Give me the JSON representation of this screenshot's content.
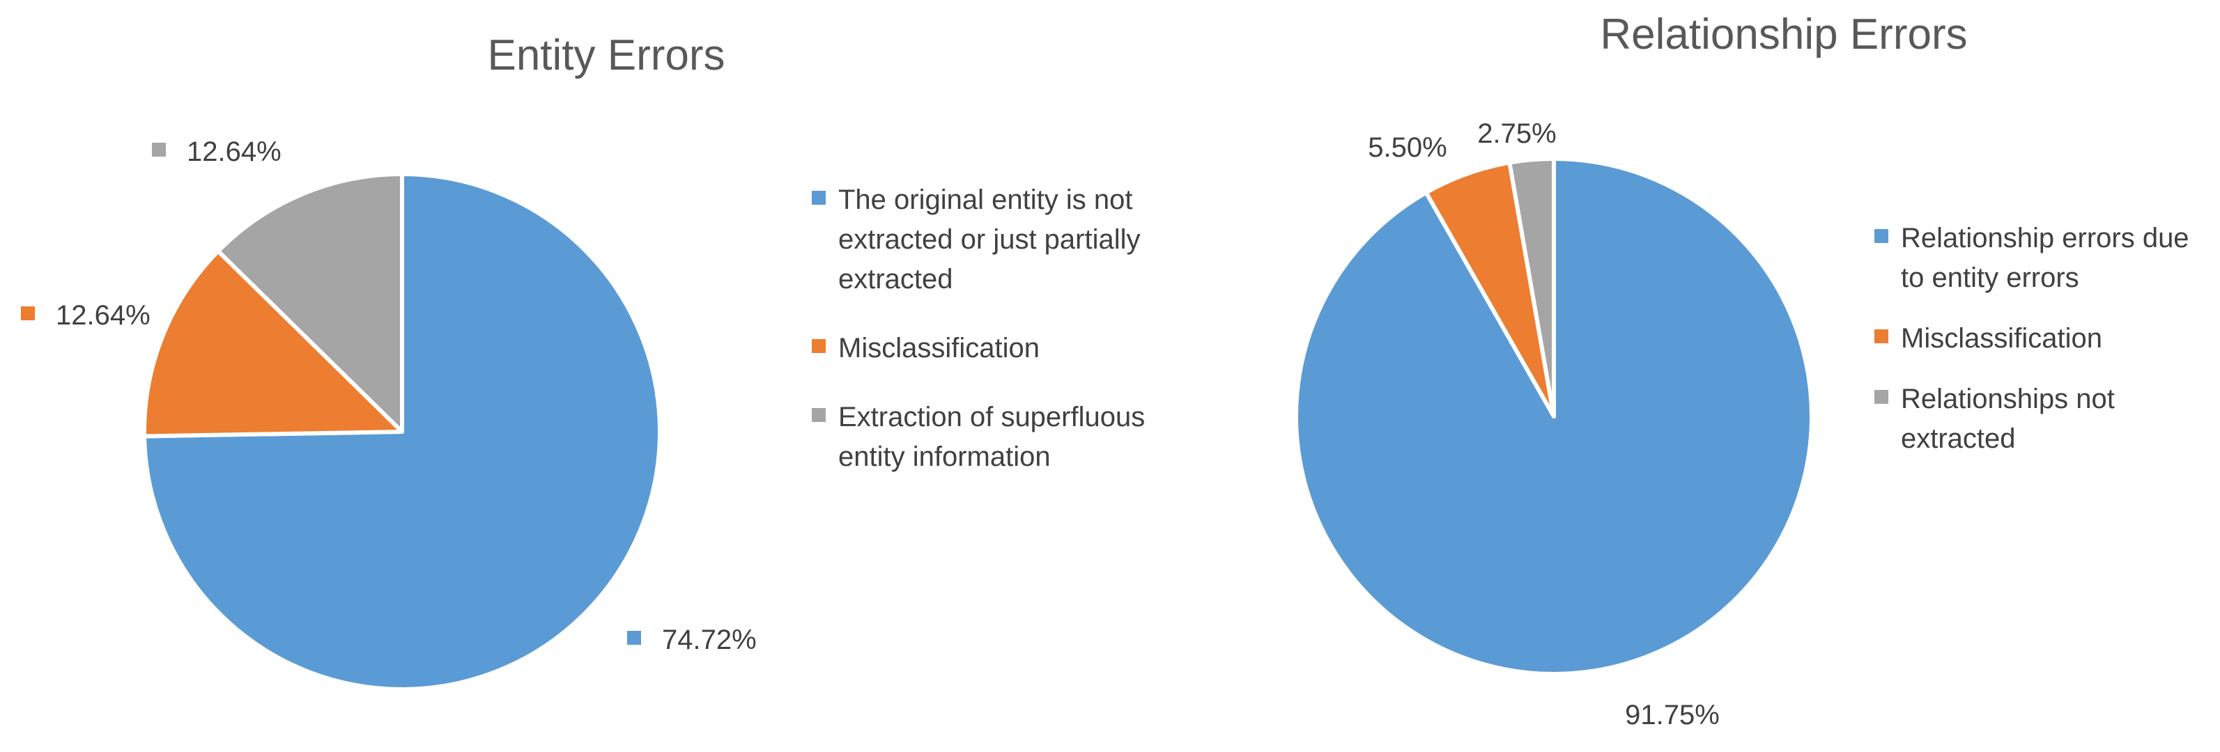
{
  "chart_data": [
    {
      "type": "pie",
      "title": "Entity Errors",
      "series": [
        {
          "name": "The original entity is not extracted or just partially extracted",
          "value": 74.72,
          "label": "74.72%",
          "color": "#5B9BD5",
          "legend_lines": [
            "The original entity is not",
            "extracted or just partially",
            "extracted"
          ]
        },
        {
          "name": "Misclassification",
          "value": 12.64,
          "label": "12.64%",
          "color": "#ED7D31",
          "legend_lines": [
            "Misclassification"
          ]
        },
        {
          "name": "Extraction of superfluous entity information",
          "value": 12.64,
          "label": "12.64%",
          "color": "#A5A5A5",
          "legend_lines": [
            "Extraction of superfluous",
            "entity information"
          ]
        }
      ],
      "legend_position": "right",
      "label_style": "with-legend-key"
    },
    {
      "type": "pie",
      "title": "Relationship Errors",
      "series": [
        {
          "name": "Relationship errors due to entity errors",
          "value": 91.75,
          "label": "91.75%",
          "color": "#5B9BD5",
          "legend_lines": [
            "Relationship errors due",
            "to entity errors"
          ]
        },
        {
          "name": "Misclassification",
          "value": 5.5,
          "label": "5.50%",
          "color": "#ED7D31",
          "legend_lines": [
            "Misclassification"
          ]
        },
        {
          "name": "Relationships not extracted",
          "value": 2.75,
          "label": "2.75%",
          "color": "#A5A5A5",
          "legend_lines": [
            "Relationships not",
            "extracted"
          ]
        }
      ],
      "legend_position": "right",
      "label_style": "plain"
    }
  ]
}
